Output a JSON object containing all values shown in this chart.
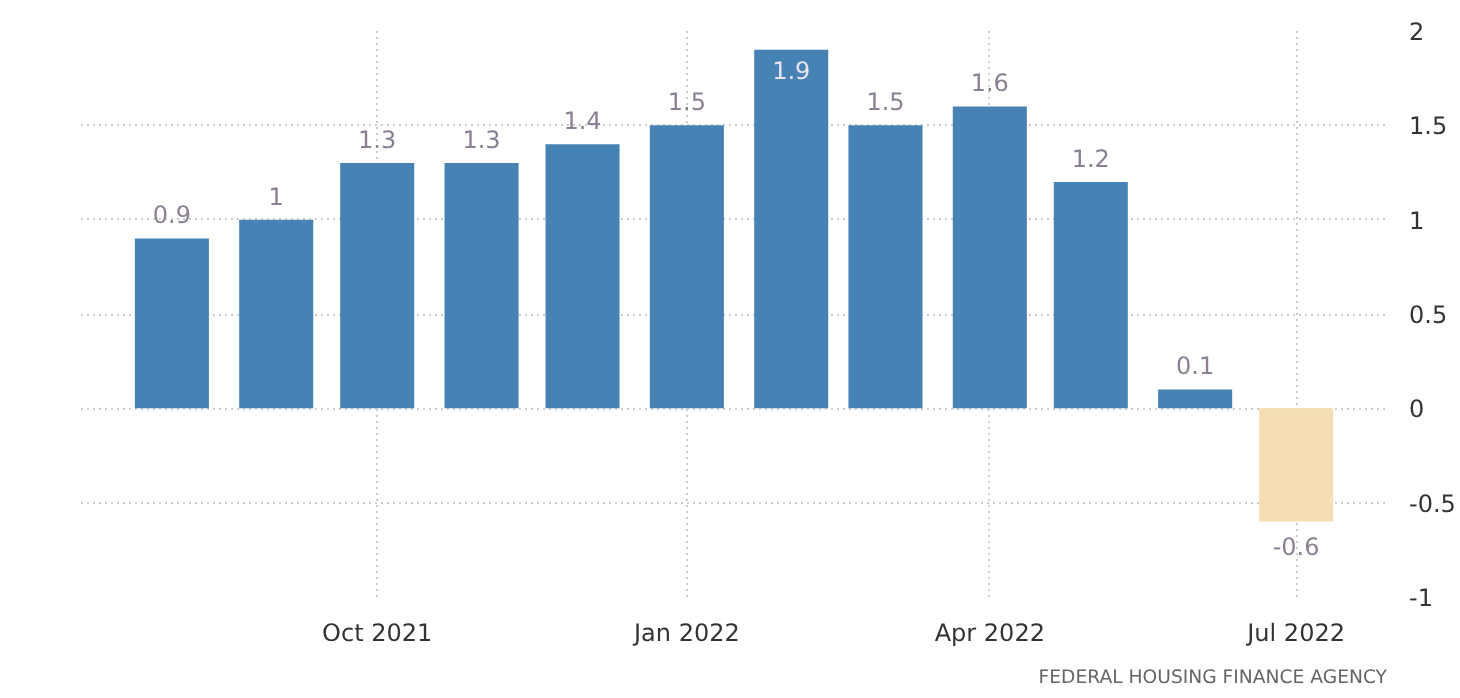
{
  "chart_data": {
    "type": "bar",
    "x": [
      "2021-08",
      "2021-09",
      "2021-10",
      "2021-11",
      "2021-12",
      "2022-01",
      "2022-02",
      "2022-03",
      "2022-04",
      "2022-05",
      "2022-06",
      "2022-07"
    ],
    "values": [
      0.9,
      1,
      1.3,
      1.3,
      1.4,
      1.5,
      1.9,
      1.5,
      1.6,
      1.2,
      0.1,
      -0.6
    ],
    "colors": [
      "#4682b4",
      "#4682b4",
      "#4682b4",
      "#4682b4",
      "#4682b4",
      "#4682b4",
      "#4682b4",
      "#4682b4",
      "#4682b4",
      "#4682b4",
      "#4682b4",
      "#f5deb3"
    ],
    "data_labels": true,
    "xlim": [
      "2021-07-05",
      "2022-07-28"
    ],
    "xticks": [
      {
        "value": "2021-10",
        "label": "Oct 2021"
      },
      {
        "value": "2022-01",
        "label": "Jan 2022"
      },
      {
        "value": "2022-04",
        "label": "Apr 2022"
      },
      {
        "value": "2022-07",
        "label": "Jul 2022"
      }
    ],
    "ylim": [
      -1,
      2
    ],
    "yticks": [
      -1,
      -0.5,
      0,
      0.5,
      1,
      1.5,
      2
    ],
    "grid": true,
    "annotations": [
      "FEDERAL HOUSING FINANCE AGENCY"
    ]
  }
}
